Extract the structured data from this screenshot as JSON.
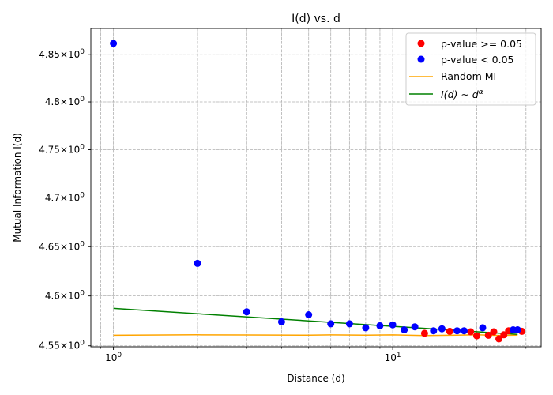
{
  "chart_data": {
    "type": "scatter",
    "title": "I(d) vs. d",
    "xlabel": "Distance (d)",
    "ylabel": "Mutual Information I(d)",
    "xscale": "log",
    "yscale": "log",
    "xlim": [
      0.83,
      34
    ],
    "ylim": [
      4.549,
      4.878
    ],
    "grid": true,
    "legend_position": "top-right",
    "x_ticks": [
      {
        "value": 1,
        "base": "10",
        "exp": "0"
      },
      {
        "value": 10,
        "base": "10",
        "exp": "1"
      }
    ],
    "y_ticks": [
      {
        "value": 4.55,
        "mantissa": "4.55",
        "times": "×",
        "base": "10",
        "exp": "0"
      },
      {
        "value": 4.6,
        "mantissa": "4.6",
        "times": "×",
        "base": "10",
        "exp": "0"
      },
      {
        "value": 4.65,
        "mantissa": "4.65",
        "times": "×",
        "base": "10",
        "exp": "0"
      },
      {
        "value": 4.7,
        "mantissa": "4.7",
        "times": "×",
        "base": "10",
        "exp": "0"
      },
      {
        "value": 4.75,
        "mantissa": "4.75",
        "times": "×",
        "base": "10",
        "exp": "0"
      },
      {
        "value": 4.8,
        "mantissa": "4.8",
        "times": "×",
        "base": "10",
        "exp": "0"
      },
      {
        "value": 4.85,
        "mantissa": "4.85",
        "times": "×",
        "base": "10",
        "exp": "0"
      }
    ],
    "series": [
      {
        "name": "p-value >= 0.05",
        "kind": "scatter",
        "color": "#ff0000",
        "points": [
          [
            13,
            4.5625
          ],
          [
            16,
            4.5645
          ],
          [
            19,
            4.564
          ],
          [
            20,
            4.56
          ],
          [
            22,
            4.5605
          ],
          [
            23,
            4.564
          ],
          [
            24,
            4.557
          ],
          [
            25,
            4.561
          ],
          [
            26,
            4.565
          ],
          [
            29,
            4.5645
          ]
        ]
      },
      {
        "name": "p-value < 0.05",
        "kind": "scatter",
        "color": "#0000ff",
        "points": [
          [
            1,
            4.862
          ],
          [
            2,
            4.633
          ],
          [
            3,
            4.584
          ],
          [
            4,
            4.574
          ],
          [
            5,
            4.581
          ],
          [
            6,
            4.572
          ],
          [
            7,
            4.572
          ],
          [
            8,
            4.568
          ],
          [
            9,
            4.57
          ],
          [
            10,
            4.571
          ],
          [
            11,
            4.566
          ],
          [
            12,
            4.569
          ],
          [
            14,
            4.565
          ],
          [
            15,
            4.567
          ],
          [
            17,
            4.565
          ],
          [
            18,
            4.565
          ],
          [
            21,
            4.568
          ],
          [
            27,
            4.566
          ],
          [
            28,
            4.566
          ]
        ]
      },
      {
        "name": "Random MI",
        "kind": "line",
        "color": "#ffa500",
        "points": [
          [
            1,
            4.5605
          ],
          [
            2,
            4.561
          ],
          [
            3,
            4.5608
          ],
          [
            5,
            4.5606
          ],
          [
            6,
            4.5609
          ],
          [
            8,
            4.5607
          ],
          [
            10,
            4.5609
          ],
          [
            13,
            4.5603
          ],
          [
            17,
            4.5606
          ],
          [
            20,
            4.561
          ],
          [
            24,
            4.5604
          ],
          [
            28,
            4.5606
          ]
        ]
      },
      {
        "name": "$I(d) \\sim d^{\\alpha}$",
        "kind": "line",
        "color": "#008000",
        "points": [
          [
            1,
            4.5875
          ],
          [
            28,
            4.5615
          ]
        ]
      }
    ]
  }
}
